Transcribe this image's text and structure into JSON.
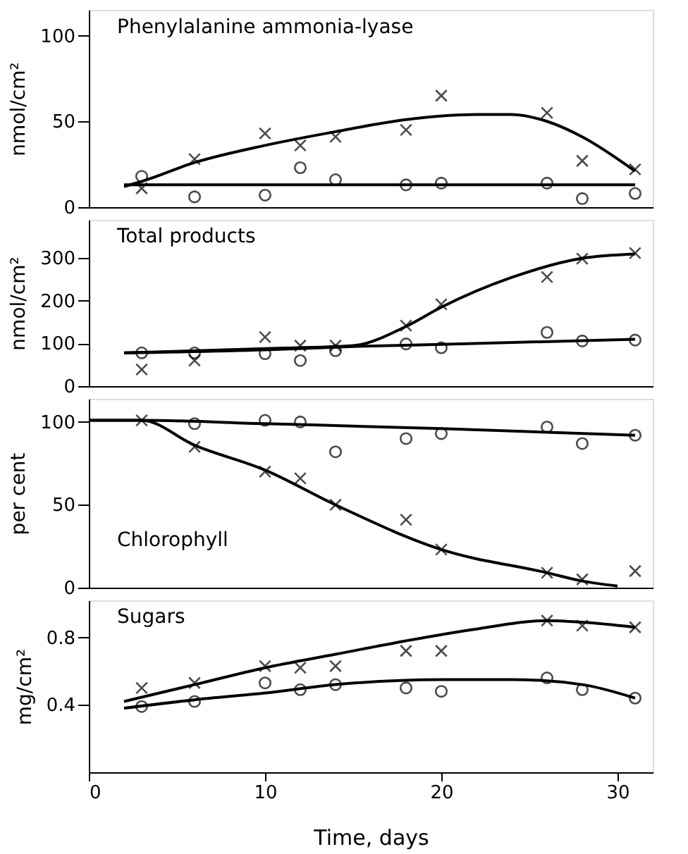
{
  "chart_data": [
    {
      "type": "scatter",
      "title": "Phenylalanine ammonia-lyase",
      "ylabel": "nmol/cm²",
      "xlim": [
        0,
        32
      ],
      "ylim": [
        0,
        115
      ],
      "yticks": [
        0,
        50,
        100
      ],
      "tick_labels": "y",
      "grid": false,
      "x": [
        3,
        6,
        10,
        12,
        14,
        18,
        20,
        26,
        28,
        31
      ],
      "series": [
        {
          "color": "#000000",
          "marker": "cross",
          "values": [
            11,
            28,
            43,
            36,
            41,
            45,
            65,
            55,
            27,
            22
          ]
        },
        {
          "color": "#000000",
          "marker": "circle",
          "values": [
            18,
            6,
            7,
            23,
            16,
            13,
            14,
            14,
            5,
            8
          ]
        },
        {
          "type": "line",
          "color": "#000000",
          "marker": "none",
          "line_style": "solid",
          "x": [
            2,
            3,
            6,
            10,
            14,
            18,
            22,
            24,
            26,
            28,
            31
          ],
          "values": [
            12,
            15,
            26,
            36,
            44,
            51,
            54,
            54,
            50,
            41,
            21
          ]
        },
        {
          "type": "line",
          "color": "#000000",
          "marker": "none",
          "line_style": "solid",
          "x": [
            2,
            31
          ],
          "values": [
            13,
            13
          ]
        }
      ]
    },
    {
      "type": "scatter",
      "title": "Total products",
      "ylabel": "nmol/cm²",
      "xlim": [
        0,
        32
      ],
      "ylim": [
        0,
        390
      ],
      "yticks": [
        0,
        100,
        200,
        300
      ],
      "tick_labels": "y",
      "grid": false,
      "x": [
        3,
        6,
        10,
        12,
        14,
        18,
        20,
        26,
        28,
        31
      ],
      "series": [
        {
          "color": "#000000",
          "marker": "cross",
          "values": [
            39,
            60,
            115,
            95,
            95,
            142,
            192,
            256,
            299,
            312
          ]
        },
        {
          "color": "#000000",
          "marker": "circle",
          "values": [
            78,
            78,
            76,
            60,
            83,
            99,
            90,
            126,
            106,
            108
          ]
        },
        {
          "type": "line",
          "color": "#000000",
          "marker": "none",
          "line_style": "solid",
          "x": [
            2,
            10,
            15,
            18,
            20,
            24,
            28,
            31
          ],
          "values": [
            78,
            88,
            95,
            140,
            185,
            255,
            300,
            310
          ]
        },
        {
          "type": "line",
          "color": "#000000",
          "marker": "none",
          "line_style": "solid",
          "x": [
            2,
            10,
            15,
            20,
            31
          ],
          "values": [
            78,
            85,
            93,
            98,
            110
          ]
        }
      ]
    },
    {
      "type": "scatter",
      "title": "Chlorophyll",
      "ylabel": "per cent",
      "xlim": [
        0,
        32
      ],
      "ylim": [
        0,
        114
      ],
      "yticks": [
        0,
        50,
        100
      ],
      "tick_labels": "y",
      "grid": false,
      "x": [
        3,
        6,
        10,
        12,
        14,
        18,
        20,
        26,
        28,
        31
      ],
      "series": [
        {
          "color": "#000000",
          "marker": "cross",
          "values": [
            101,
            85,
            70,
            66,
            50,
            41,
            23,
            9,
            5,
            10
          ]
        },
        {
          "color": "#000000",
          "marker": "circle",
          "x": [
            6,
            10,
            12,
            14,
            18,
            20,
            26,
            28,
            31
          ],
          "values": [
            99,
            101,
            100,
            82,
            90,
            93,
            97,
            87,
            92
          ]
        },
        {
          "type": "line",
          "color": "#000000",
          "marker": "none",
          "line_style": "solid",
          "x": [
            0,
            3,
            6,
            10,
            14,
            20,
            26,
            28,
            30
          ],
          "values": [
            101,
            101,
            86,
            71,
            50,
            23,
            9,
            4,
            1
          ]
        },
        {
          "type": "line",
          "color": "#000000",
          "marker": "none",
          "line_style": "solid",
          "x": [
            0,
            3,
            10,
            20,
            31
          ],
          "values": [
            101,
            101,
            99,
            96,
            92
          ]
        }
      ]
    },
    {
      "type": "scatter",
      "title": "Sugars",
      "ylabel": "mg/cm²",
      "xlabel": "Time,  days",
      "xlim": [
        0,
        32
      ],
      "ylim": [
        0,
        1.02
      ],
      "xticks": [
        0,
        10,
        20,
        30
      ],
      "yticks": [
        0.4,
        0.8
      ],
      "grid": false,
      "x": [
        3,
        6,
        10,
        12,
        14,
        18,
        20,
        26,
        28,
        31
      ],
      "series": [
        {
          "color": "#000000",
          "marker": "cross",
          "values": [
            0.5,
            0.53,
            0.63,
            0.62,
            0.63,
            0.72,
            0.72,
            0.9,
            0.87,
            0.86
          ]
        },
        {
          "color": "#000000",
          "marker": "circle",
          "values": [
            0.39,
            0.42,
            0.53,
            0.49,
            0.52,
            0.5,
            0.48,
            0.56,
            0.49,
            0.44
          ]
        },
        {
          "type": "line",
          "color": "#000000",
          "marker": "none",
          "line_style": "solid",
          "x": [
            2,
            6,
            10,
            14,
            18,
            22,
            26,
            28,
            31
          ],
          "values": [
            0.42,
            0.52,
            0.62,
            0.7,
            0.78,
            0.85,
            0.9,
            0.89,
            0.86
          ]
        },
        {
          "type": "line",
          "color": "#000000",
          "marker": "none",
          "line_style": "solid",
          "x": [
            2,
            6,
            10,
            14,
            20,
            24,
            28,
            31
          ],
          "values": [
            0.38,
            0.43,
            0.47,
            0.52,
            0.55,
            0.55,
            0.52,
            0.44
          ]
        }
      ]
    }
  ]
}
